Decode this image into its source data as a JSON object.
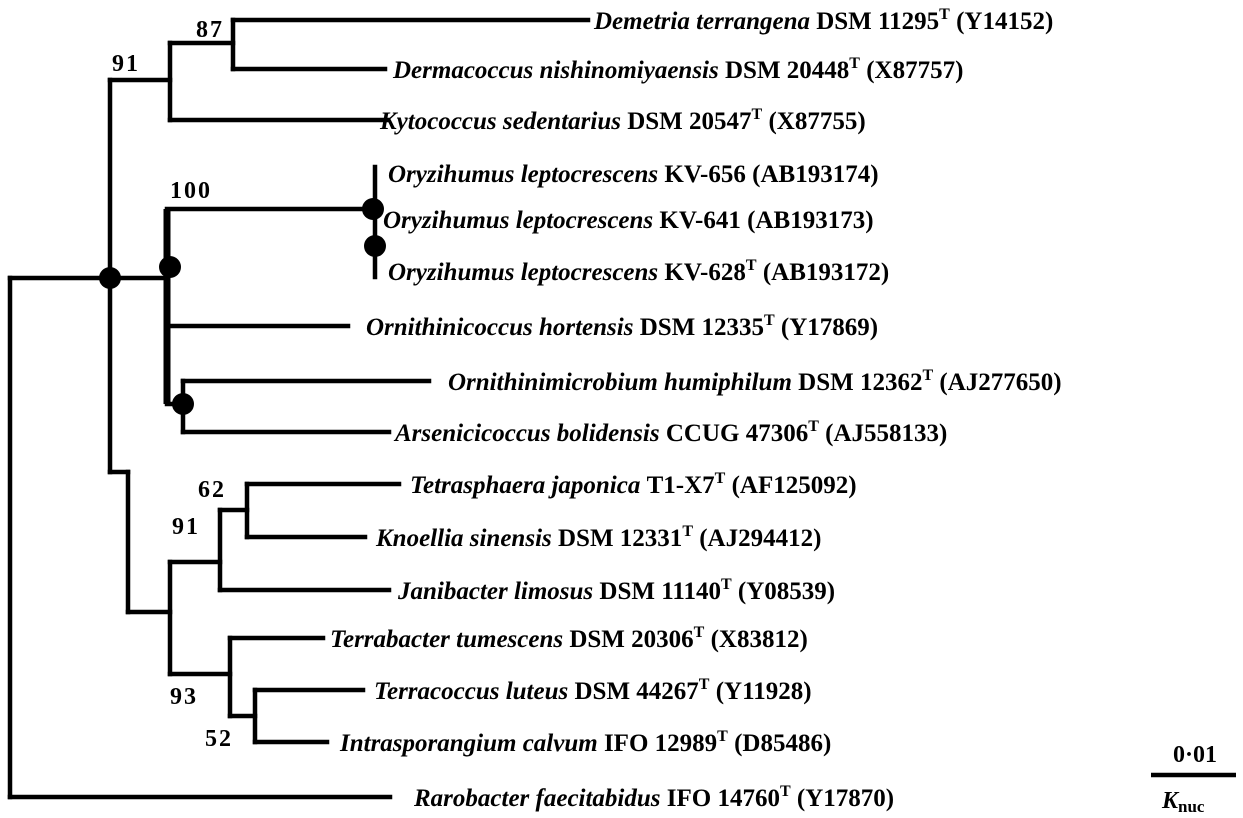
{
  "taxa": [
    {
      "species": "Demetria terrangena",
      "strain": "DSM 11295",
      "type_strain": "T",
      "accession": "(Y14152)"
    },
    {
      "species": "Dermacoccus nishinomiyaensis",
      "strain": "DSM 20448",
      "type_strain": "T",
      "accession": "(X87757)"
    },
    {
      "species": "Kytococcus sedentarius",
      "strain": "DSM 20547",
      "type_strain": "T",
      "accession": "(X87755)"
    },
    {
      "species": "Oryzihumus leptocrescens",
      "strain": "KV-656",
      "type_strain": "",
      "accession": "(AB193174)"
    },
    {
      "species": "Oryzihumus leptocrescens",
      "strain": "KV-641",
      "type_strain": "",
      "accession": "(AB193173)"
    },
    {
      "species": "Oryzihumus leptocrescens",
      "strain": "KV-628",
      "type_strain": "T",
      "accession": "(AB193172)"
    },
    {
      "species": "Ornithinicoccus hortensis",
      "strain": "DSM 12335",
      "type_strain": "T",
      "accession": "(Y17869)"
    },
    {
      "species": "Ornithinimicrobium humiphilum",
      "strain": "DSM 12362",
      "type_strain": "T",
      "accession": "(AJ277650)"
    },
    {
      "species": "Arsenicicoccus bolidensis",
      "strain": "CCUG 47306",
      "type_strain": "T",
      "accession": "(AJ558133)"
    },
    {
      "species": "Tetrasphaera japonica",
      "strain": "T1-X7",
      "type_strain": "T",
      "accession": "(AF125092)"
    },
    {
      "species": "Knoellia sinensis",
      "strain": "DSM 12331",
      "type_strain": "T",
      "accession": "(AJ294412)"
    },
    {
      "species": "Janibacter limosus",
      "strain": "DSM 11140",
      "type_strain": "T",
      "accession": "(Y08539)"
    },
    {
      "species": "Terrabacter tumescens",
      "strain": "DSM 20306",
      "type_strain": "T",
      "accession": "(X83812)"
    },
    {
      "species": "Terracoccus luteus",
      "strain": "DSM 44267",
      "type_strain": "T",
      "accession": "(Y11928)"
    },
    {
      "species": "Intrasporangium calvum",
      "strain": "IFO 12989",
      "type_strain": "T",
      "accession": "(D85486)"
    },
    {
      "species": "Rarobacter faecitabidus",
      "strain": "IFO 14760",
      "type_strain": "T",
      "accession": "(Y17870)"
    }
  ],
  "bootstrap": {
    "demetria_dermacoccus": "87",
    "upper_clade": "91",
    "oryzihumus": "100",
    "tetrasphaera_knoellia": "62",
    "janibacter_clade": "91",
    "terrabacter_clade": "93",
    "terracoccus_intrasporangium": "52"
  },
  "scale_bar": {
    "value": "0·01",
    "label": "K",
    "label_subscript": "nuc"
  }
}
